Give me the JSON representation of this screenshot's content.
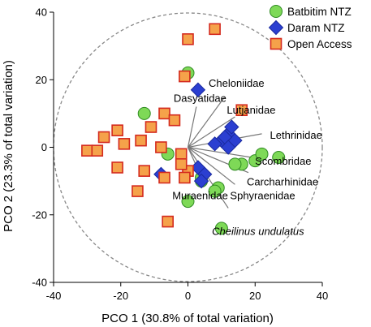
{
  "chart_data": {
    "type": "scatter",
    "title": "",
    "xlabel": "PCO 1 (30.8% of total variation)",
    "ylabel": "PCO 2 (23.3% of total variation)",
    "xlim": [
      -40,
      40
    ],
    "ylim": [
      -40,
      40
    ],
    "xticks": [
      -40,
      -20,
      0,
      20,
      40
    ],
    "yticks": [
      -40,
      -20,
      0,
      20,
      40
    ],
    "grid": false,
    "legend_position": "top-right",
    "reference_circle": {
      "center": [
        0,
        0
      ],
      "radius": 40,
      "style": "dashed"
    },
    "series": [
      {
        "name": "Batbitim NTZ",
        "marker": "circle",
        "color": "#7ed957",
        "points": [
          [
            0,
            22
          ],
          [
            -6,
            -2
          ],
          [
            -13,
            10
          ],
          [
            20,
            -4
          ],
          [
            16,
            -5
          ],
          [
            22,
            -2
          ],
          [
            27,
            -3
          ],
          [
            9,
            -12
          ],
          [
            4,
            -10
          ],
          [
            14,
            -5
          ],
          [
            0,
            -16
          ],
          [
            10,
            -24
          ],
          [
            8,
            -13
          ],
          [
            4,
            -9
          ]
        ]
      },
      {
        "name": "Daram NTZ",
        "marker": "diamond",
        "color": "#2b3fd1",
        "points": [
          [
            3,
            17
          ],
          [
            10,
            2
          ],
          [
            12,
            4
          ],
          [
            13,
            6
          ],
          [
            14,
            2
          ],
          [
            11,
            3
          ],
          [
            8,
            1
          ],
          [
            12,
            0
          ],
          [
            3,
            -6
          ],
          [
            5,
            -8
          ],
          [
            4,
            -10
          ],
          [
            -8,
            -8
          ]
        ]
      },
      {
        "name": "Open Access",
        "marker": "square",
        "color": "#f5a24a",
        "edge": "#d42a1e",
        "points": [
          [
            8,
            35
          ],
          [
            0,
            32
          ],
          [
            -1,
            21
          ],
          [
            16,
            11
          ],
          [
            -7,
            10
          ],
          [
            -4,
            8
          ],
          [
            -11,
            6
          ],
          [
            -21,
            5
          ],
          [
            -25,
            3
          ],
          [
            -14,
            2
          ],
          [
            -19,
            1
          ],
          [
            -8,
            0
          ],
          [
            -30,
            -1
          ],
          [
            -27,
            -1
          ],
          [
            -2,
            -2
          ],
          [
            -13,
            -7
          ],
          [
            0,
            -7
          ],
          [
            -21,
            -6
          ],
          [
            -2,
            -5
          ],
          [
            -7,
            -9
          ],
          [
            -1,
            -9
          ],
          [
            -15,
            -13
          ],
          [
            -6,
            -22
          ]
        ]
      }
    ],
    "vectors": [
      {
        "label": "Dasyatidae",
        "italic": false,
        "end": [
          2.5,
          12
        ]
      },
      {
        "label": "Cheloniidae",
        "italic": false,
        "end": [
          11,
          15
        ]
      },
      {
        "label": "Lutjanidae",
        "italic": false,
        "end": [
          14,
          9
        ]
      },
      {
        "label": "Lethrinidae",
        "italic": false,
        "end": [
          22,
          4
        ]
      },
      {
        "label": "Scombridae",
        "italic": false,
        "end": [
          19,
          -3
        ]
      },
      {
        "label": "Carcharhinidae",
        "italic": false,
        "end": [
          18,
          -7.5
        ]
      },
      {
        "label": "Sphyraenidae",
        "italic": false,
        "end": [
          14,
          -11
        ]
      },
      {
        "label": "Muraenidae",
        "italic": false,
        "end": [
          5,
          -11
        ]
      },
      {
        "label": "Cheilinus undulatus",
        "italic": true,
        "end": [
          12,
          -18
        ]
      }
    ]
  }
}
